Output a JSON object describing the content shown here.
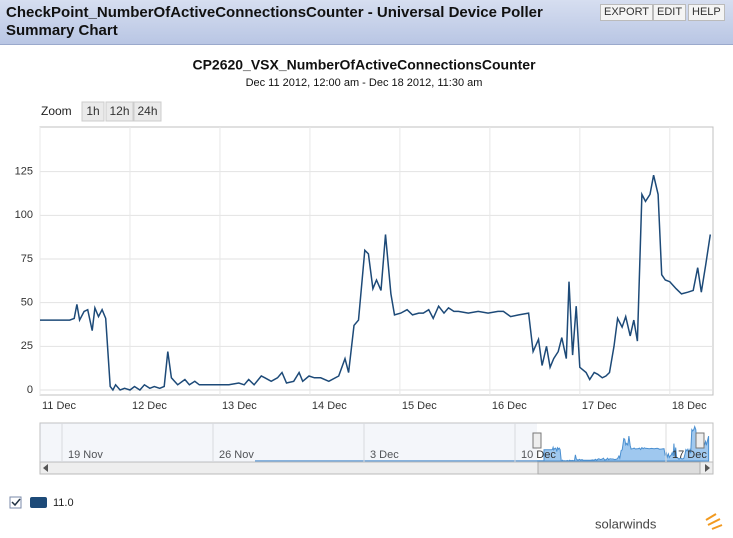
{
  "header": {
    "title": "CheckPoint_NumberOfActiveConnectionsCounter - Universal Device Poller Summary Chart",
    "buttons": [
      "EXPORT",
      "EDIT",
      "HELP"
    ]
  },
  "zoom": {
    "label": "Zoom",
    "options": [
      "1h",
      "12h",
      "24h"
    ]
  },
  "chart_data": {
    "type": "line",
    "title": "CP2620_VSX_NumberOfActiveConnectionsCounter",
    "subtitle": "Dec 11 2012, 12:00 am - Dec 18 2012, 11:30 am",
    "x": [
      11.0,
      11.11,
      11.22,
      11.33,
      11.38,
      11.41,
      11.44,
      11.49,
      11.53,
      11.58,
      11.61,
      11.65,
      11.69,
      11.73,
      11.78,
      11.81,
      11.84,
      11.89,
      11.94,
      12.0,
      12.05,
      12.11,
      12.16,
      12.22,
      12.27,
      12.33,
      12.38,
      12.42,
      12.46,
      12.53,
      12.61,
      12.66,
      12.72,
      12.77,
      12.88,
      12.99,
      13.1,
      13.21,
      13.27,
      13.32,
      13.38,
      13.46,
      13.5,
      13.57,
      13.64,
      13.69,
      13.74,
      13.82,
      13.88,
      13.92,
      13.99,
      14.05,
      14.12,
      14.21,
      14.32,
      14.39,
      14.43,
      14.49,
      14.54,
      14.61,
      14.65,
      14.7,
      14.74,
      14.79,
      14.84,
      14.9,
      14.94,
      15.01,
      15.08,
      15.14,
      15.21,
      15.26,
      15.32,
      15.37,
      15.43,
      15.49,
      15.54,
      15.6,
      15.65,
      15.76,
      15.87,
      15.98,
      16.09,
      16.15,
      16.23,
      16.32,
      16.43,
      16.48,
      16.54,
      16.58,
      16.63,
      16.67,
      16.71,
      16.76,
      16.8,
      16.85,
      16.88,
      16.92,
      16.96,
      17.0,
      17.07,
      17.11,
      17.16,
      17.2,
      17.25,
      17.29,
      17.33,
      17.38,
      17.42,
      17.47,
      17.51,
      17.56,
      17.6,
      17.64,
      17.69,
      17.73,
      17.78,
      17.82,
      17.87,
      17.91,
      17.95,
      18.0,
      18.07,
      18.13,
      18.2,
      18.26,
      18.31,
      18.35,
      18.4,
      18.45
    ],
    "series": [
      {
        "name": "11.0",
        "color": "#1d4a78",
        "values": [
          40,
          40,
          40,
          40,
          41,
          49,
          40,
          45,
          46,
          34,
          47,
          42,
          46,
          41,
          2,
          0,
          3,
          0,
          1,
          0,
          2,
          0,
          3,
          1,
          2,
          1,
          2,
          22,
          7,
          3,
          6,
          3,
          5,
          3,
          3,
          3,
          3,
          4,
          3,
          6,
          3,
          8,
          7,
          5,
          7,
          10,
          4,
          5,
          10,
          5,
          8,
          7,
          7,
          5,
          8,
          18,
          10,
          37,
          40,
          80,
          78,
          58,
          63,
          57,
          89,
          55,
          43,
          44,
          46,
          43,
          44,
          44,
          46,
          41,
          48,
          44,
          47,
          45,
          45,
          44,
          45,
          44,
          45,
          45,
          42,
          43,
          44,
          22,
          29,
          14,
          25,
          13,
          18,
          22,
          30,
          18,
          62,
          20,
          48,
          13,
          10,
          6,
          10,
          9,
          7,
          8,
          10,
          25,
          41,
          36,
          42,
          31,
          40,
          28,
          112,
          108,
          112,
          123,
          112,
          66,
          63,
          62,
          58,
          55,
          56,
          57,
          70,
          56,
          72,
          89
        ]
      }
    ],
    "xlim": [
      11,
      18.48
    ],
    "xticks": [
      {
        "value": 11,
        "label": "11 Dec"
      },
      {
        "value": 12,
        "label": "12 Dec"
      },
      {
        "value": 13,
        "label": "13 Dec"
      },
      {
        "value": 14,
        "label": "14 Dec"
      },
      {
        "value": 15,
        "label": "15 Dec"
      },
      {
        "value": 16,
        "label": "16 Dec"
      },
      {
        "value": 17,
        "label": "17 Dec"
      },
      {
        "value": 18,
        "label": "18 Dec"
      }
    ],
    "ylim": [
      0,
      150
    ],
    "yticks": [
      0,
      25,
      50,
      75,
      100,
      125
    ],
    "grid": true
  },
  "navigator": {
    "labels": [
      "19 Nov",
      "26 Nov",
      "3 Dec",
      "10 Dec",
      "17 Dec"
    ]
  },
  "footer": {
    "logo": "solarwinds"
  }
}
